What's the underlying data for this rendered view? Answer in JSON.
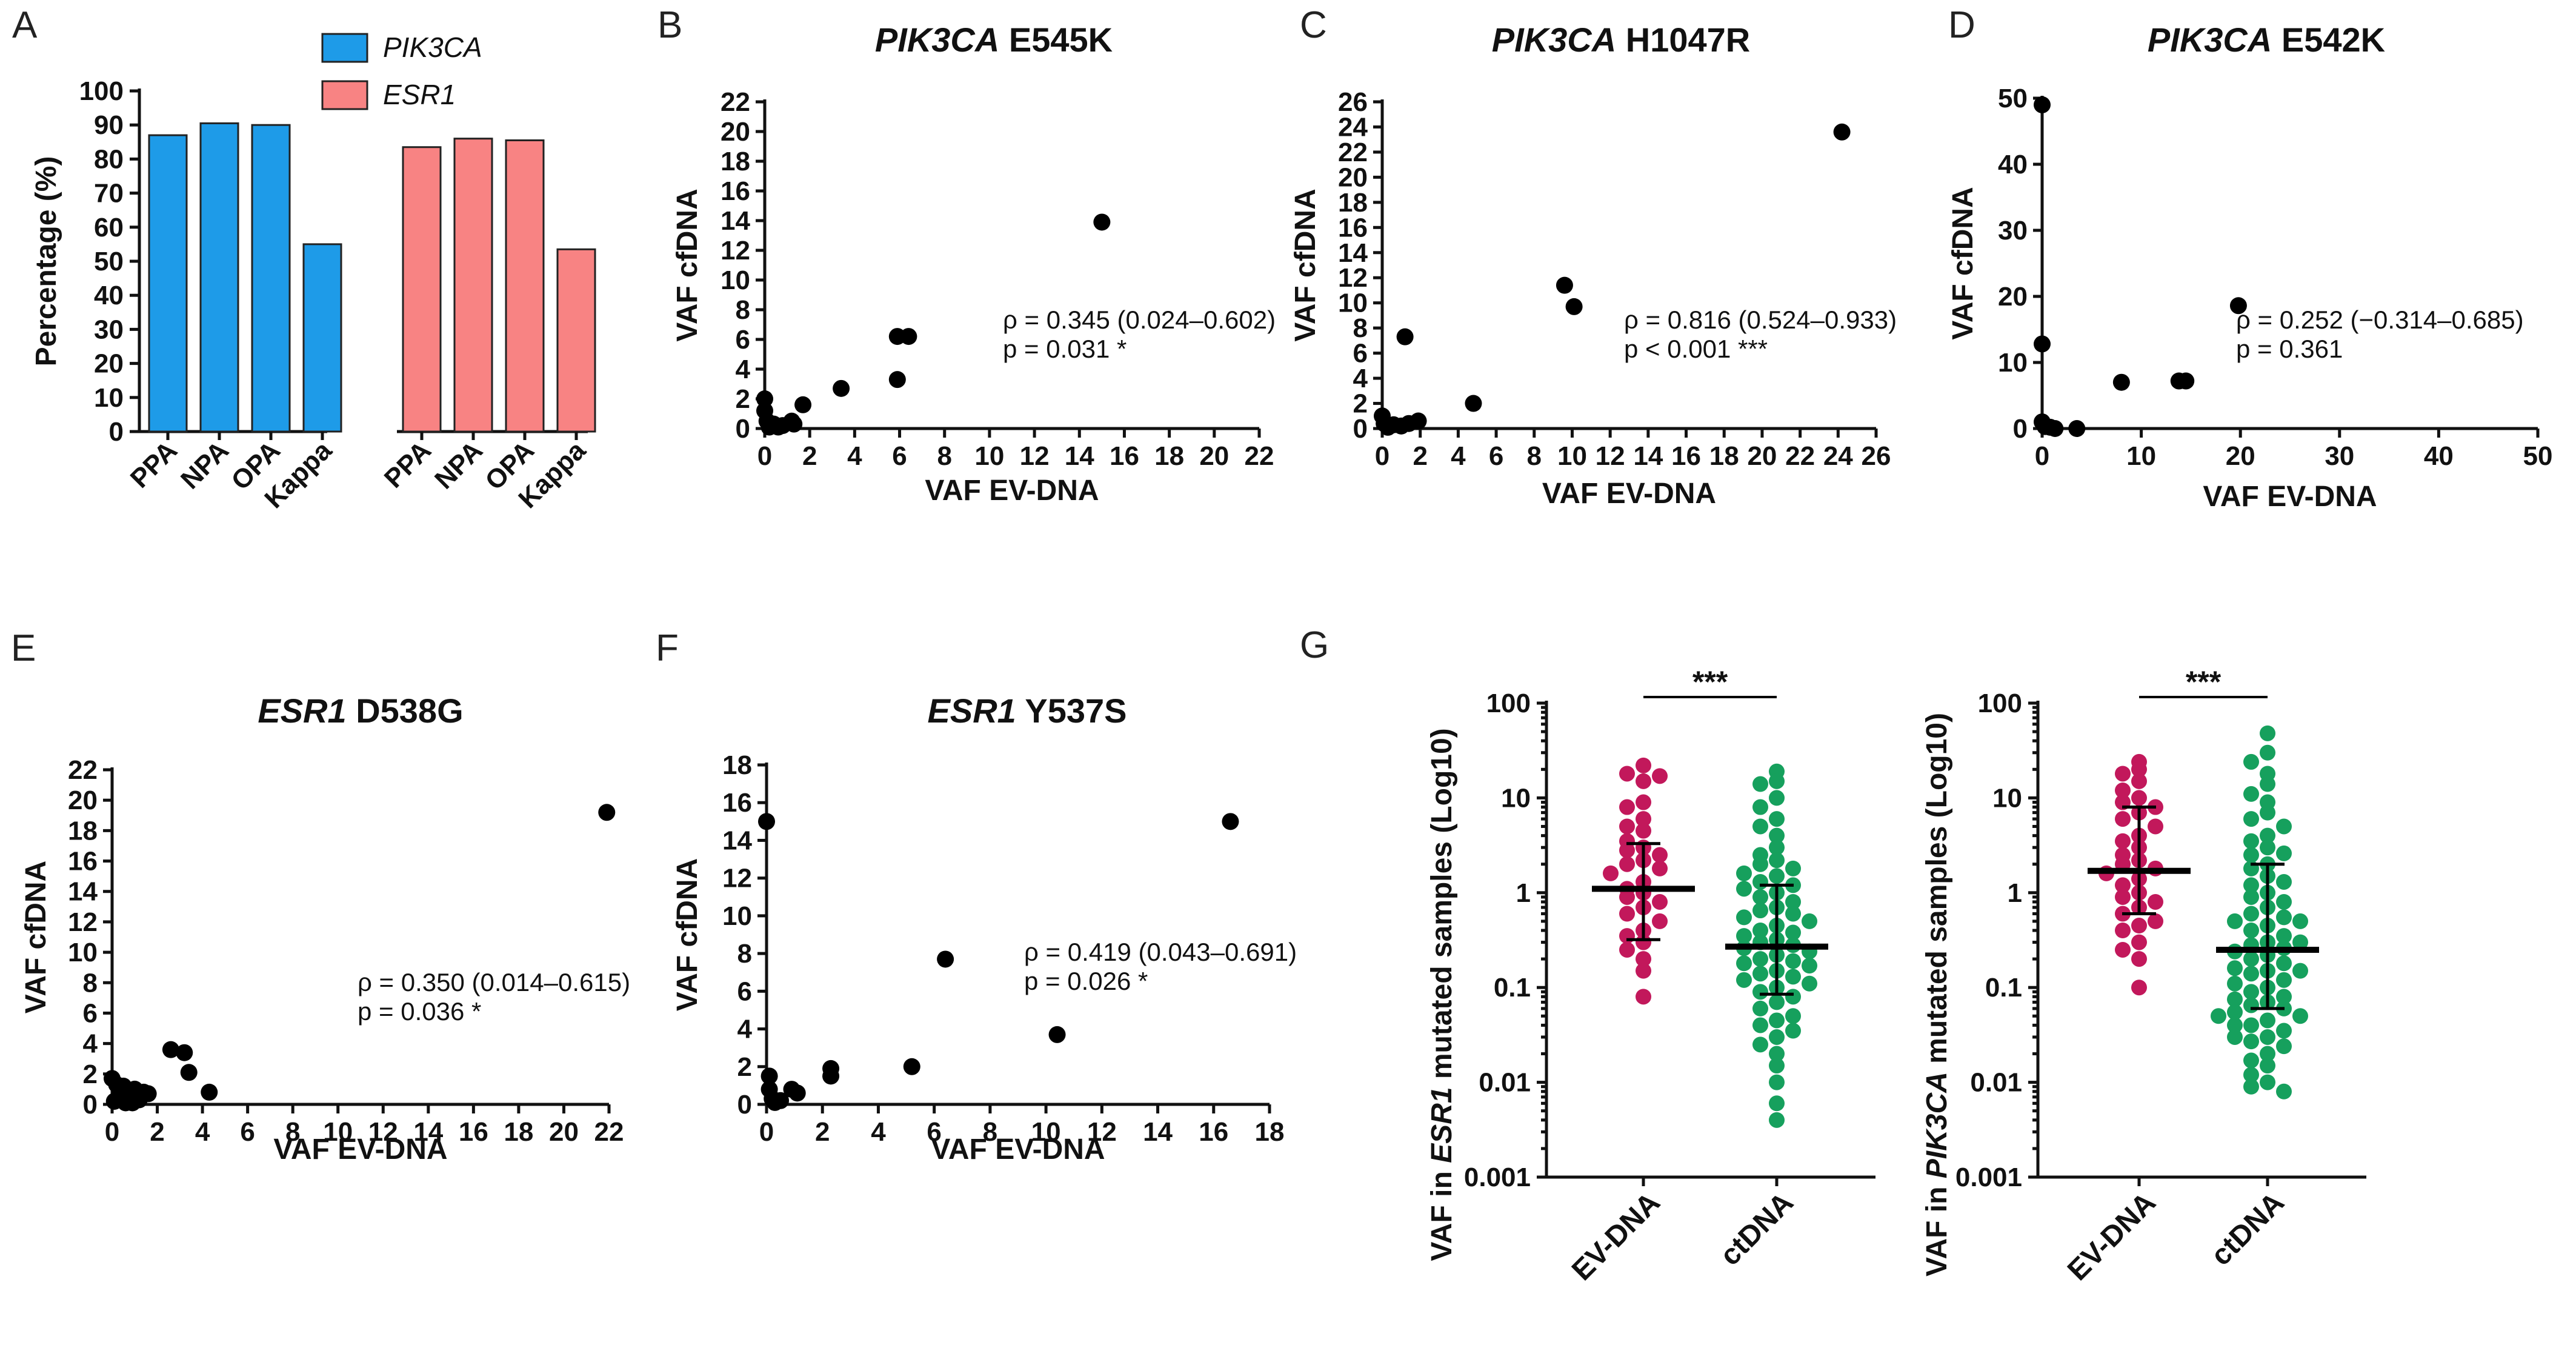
{
  "chart_data": [
    {
      "id": "A",
      "type": "bar",
      "panel_letter": "A",
      "ylabel": "Percentage (%)",
      "ylim": [
        0,
        100
      ],
      "yticks": [
        0,
        10,
        20,
        30,
        40,
        50,
        60,
        70,
        80,
        90,
        100
      ],
      "groups": [
        {
          "name": "PIK3CA",
          "color": "#1e9be8",
          "categories": [
            "PPA",
            "NPA",
            "OPA",
            "Kappa"
          ],
          "values": [
            87,
            90.5,
            90,
            55
          ]
        },
        {
          "name": "ESR1",
          "color": "#f88383",
          "categories": [
            "PPA",
            "NPA",
            "OPA",
            "Kappa"
          ],
          "values": [
            83.5,
            86,
            85.5,
            53.5
          ]
        }
      ],
      "legend": [
        {
          "label": "PIK3CA",
          "color": "#1e9be8"
        },
        {
          "label": "ESR1",
          "color": "#f88383"
        }
      ]
    },
    {
      "id": "B",
      "type": "scatter",
      "panel_letter": "B",
      "title_gene": "PIK3CA",
      "title_variant": "E545K",
      "xlabel": "VAF EV-DNA",
      "ylabel": "VAF cfDNA",
      "xlim": [
        0,
        22
      ],
      "ylim": [
        0,
        22
      ],
      "xticks": [
        0,
        2,
        4,
        6,
        8,
        10,
        12,
        14,
        16,
        18,
        20,
        22
      ],
      "yticks": [
        0,
        2,
        4,
        6,
        8,
        10,
        12,
        14,
        16,
        18,
        20,
        22
      ],
      "points": [
        [
          0,
          2
        ],
        [
          0,
          1.2
        ],
        [
          0.1,
          0.5
        ],
        [
          0.2,
          0.1
        ],
        [
          0.4,
          0.3
        ],
        [
          0.6,
          0.1
        ],
        [
          0.8,
          0.2
        ],
        [
          1.2,
          0.5
        ],
        [
          1.3,
          0.3
        ],
        [
          1.7,
          1.6
        ],
        [
          3.4,
          2.7
        ],
        [
          5.9,
          3.3
        ],
        [
          5.9,
          6.2
        ],
        [
          6.4,
          6.2
        ],
        [
          15,
          13.9
        ]
      ],
      "stat_rho": "ρ = 0.345 (0.024–0.602)",
      "stat_p": "p = 0.031 *"
    },
    {
      "id": "C",
      "type": "scatter",
      "panel_letter": "C",
      "title_gene": "PIK3CA",
      "title_variant": "H1047R",
      "xlabel": "VAF EV-DNA",
      "ylabel": "VAF cfDNA",
      "xlim": [
        0,
        26
      ],
      "ylim": [
        0,
        26
      ],
      "xticks": [
        0,
        2,
        4,
        6,
        8,
        10,
        12,
        14,
        16,
        18,
        20,
        22,
        24,
        26
      ],
      "yticks": [
        0,
        2,
        4,
        6,
        8,
        10,
        12,
        14,
        16,
        18,
        20,
        22,
        24,
        26
      ],
      "points": [
        [
          0,
          1
        ],
        [
          0.1,
          0.4
        ],
        [
          0.3,
          0.1
        ],
        [
          0.6,
          0.3
        ],
        [
          1,
          0.2
        ],
        [
          1.2,
          7.3
        ],
        [
          1.4,
          0.4
        ],
        [
          1.9,
          0.6
        ],
        [
          4.8,
          2
        ],
        [
          9.6,
          11.4
        ],
        [
          10.1,
          9.7
        ],
        [
          24.2,
          23.6
        ]
      ],
      "stat_rho": "ρ = 0.816 (0.524–0.933)",
      "stat_p": "p < 0.001 ***"
    },
    {
      "id": "D",
      "type": "scatter",
      "panel_letter": "D",
      "title_gene": "PIK3CA",
      "title_variant": "E542K",
      "xlabel": "VAF EV-DNA",
      "ylabel": "VAF cfDNA",
      "xlim": [
        0,
        50
      ],
      "ylim": [
        0,
        50
      ],
      "xticks": [
        0,
        10,
        20,
        30,
        40,
        50
      ],
      "yticks": [
        0,
        10,
        20,
        30,
        40,
        50
      ],
      "points": [
        [
          0,
          49
        ],
        [
          0,
          12.8
        ],
        [
          0,
          1
        ],
        [
          0.3,
          0.3
        ],
        [
          0.8,
          0.2
        ],
        [
          1.3,
          0
        ],
        [
          3.5,
          0
        ],
        [
          8,
          7
        ],
        [
          13.8,
          7.2
        ],
        [
          14.5,
          7.2
        ],
        [
          19.8,
          18.6
        ]
      ],
      "stat_rho": "ρ = 0.252 (−0.314–0.685)",
      "stat_p": "p = 0.361"
    },
    {
      "id": "E",
      "type": "scatter",
      "panel_letter": "E",
      "title_gene": "ESR1",
      "title_variant": "D538G",
      "xlabel": "VAF EV-DNA",
      "ylabel": "VAF cfDNA",
      "xlim": [
        0,
        22
      ],
      "ylim": [
        0,
        22
      ],
      "xticks": [
        0,
        2,
        4,
        6,
        8,
        10,
        12,
        14,
        16,
        18,
        20,
        22
      ],
      "yticks": [
        0,
        2,
        4,
        6,
        8,
        10,
        12,
        14,
        16,
        18,
        20,
        22
      ],
      "points": [
        [
          0,
          1.7
        ],
        [
          0.2,
          1.3
        ],
        [
          0.3,
          0.5
        ],
        [
          0.5,
          1.2
        ],
        [
          0.6,
          0.1
        ],
        [
          0.8,
          0.6
        ],
        [
          1,
          1
        ],
        [
          1.2,
          0.3
        ],
        [
          1.4,
          0.8
        ],
        [
          1.6,
          0.7
        ],
        [
          2.6,
          3.6
        ],
        [
          3.2,
          3.4
        ],
        [
          3.4,
          2.1
        ],
        [
          4.3,
          0.8
        ],
        [
          21.9,
          19.2
        ],
        [
          0.1,
          0.2
        ],
        [
          0.9,
          0.1
        ]
      ],
      "stat_rho": "ρ = 0.350 (0.014–0.615)",
      "stat_p": "p = 0.036 *"
    },
    {
      "id": "F",
      "type": "scatter",
      "panel_letter": "F",
      "title_gene": "ESR1",
      "title_variant": "Y537S",
      "xlabel": "VAF EV-DNA",
      "ylabel": "VAF cfDNA",
      "xlim": [
        0,
        18
      ],
      "ylim": [
        0,
        18
      ],
      "xticks": [
        0,
        2,
        4,
        6,
        8,
        10,
        12,
        14,
        16,
        18
      ],
      "yticks": [
        0,
        2,
        4,
        6,
        8,
        10,
        12,
        14,
        16,
        18
      ],
      "points": [
        [
          0,
          15
        ],
        [
          0.1,
          1.5
        ],
        [
          0.1,
          0.8
        ],
        [
          0.2,
          0.3
        ],
        [
          0.3,
          0.1
        ],
        [
          0.5,
          0.2
        ],
        [
          0.9,
          0.8
        ],
        [
          1.1,
          0.6
        ],
        [
          2.3,
          1.9
        ],
        [
          2.3,
          1.5
        ],
        [
          5.2,
          2
        ],
        [
          6.4,
          7.7
        ],
        [
          10.4,
          3.7
        ],
        [
          16.6,
          15
        ]
      ],
      "stat_rho": "ρ = 0.419 (0.043–0.691)",
      "stat_p": "p = 0.026 *"
    },
    {
      "id": "G1",
      "type": "scatter",
      "panel_letter": "G",
      "ylabel_pre": "VAF in ",
      "ylabel_gene": "ESR1",
      "ylabel_post": " mutated samples (Log10)",
      "yscale": "log",
      "ylim": [
        0.001,
        100
      ],
      "yticks": [
        "0.001",
        "0.01",
        "0.1",
        "1",
        "10",
        "100"
      ],
      "categories": [
        "EV-DNA",
        "ctDNA"
      ],
      "colors": [
        "#c2185b",
        "#16a05d"
      ],
      "medians": [
        1.1,
        0.27
      ],
      "iqr": [
        [
          0.32,
          3.3
        ],
        [
          0.085,
          1.2
        ]
      ],
      "significance": "***",
      "ev_values": [
        22,
        18,
        17,
        15,
        9,
        8,
        6,
        5,
        4.5,
        3.5,
        3,
        2.8,
        2.5,
        2.2,
        2,
        1.8,
        1.6,
        1.3,
        1.1,
        1,
        0.9,
        0.8,
        0.7,
        0.6,
        0.5,
        0.4,
        0.35,
        0.3,
        0.25,
        0.2,
        0.15,
        0.08
      ],
      "ct_values": [
        19,
        15,
        14,
        10,
        8,
        6,
        5,
        4,
        3,
        2.5,
        2.2,
        2,
        1.8,
        1.6,
        1.5,
        1.3,
        1.2,
        1.1,
        1,
        0.9,
        0.8,
        0.7,
        0.65,
        0.6,
        0.55,
        0.5,
        0.45,
        0.4,
        0.38,
        0.35,
        0.32,
        0.3,
        0.28,
        0.26,
        0.24,
        0.22,
        0.2,
        0.19,
        0.18,
        0.17,
        0.15,
        0.14,
        0.13,
        0.12,
        0.11,
        0.1,
        0.09,
        0.08,
        0.07,
        0.06,
        0.05,
        0.045,
        0.04,
        0.035,
        0.03,
        0.025,
        0.02,
        0.015,
        0.01,
        0.006,
        0.004
      ]
    },
    {
      "id": "G2",
      "type": "scatter",
      "panel_letter": "",
      "ylabel_pre": "VAF in ",
      "ylabel_gene": "PIK3CA",
      "ylabel_post": " mutated samples (Log10)",
      "yscale": "log",
      "ylim": [
        0.001,
        100
      ],
      "yticks": [
        "0.001",
        "0.01",
        "0.1",
        "1",
        "10",
        "100"
      ],
      "categories": [
        "EV-DNA",
        "ctDNA"
      ],
      "colors": [
        "#c2185b",
        "#16a05d"
      ],
      "medians": [
        1.7,
        0.25
      ],
      "iqr": [
        [
          0.6,
          8
        ],
        [
          0.06,
          2
        ]
      ],
      "significance": "***",
      "ev_values": [
        24,
        20,
        18,
        15,
        12,
        10,
        9,
        8,
        7,
        6,
        5,
        4,
        3.5,
        3,
        2.5,
        2.2,
        2,
        1.8,
        1.6,
        1.4,
        1.2,
        1,
        0.9,
        0.8,
        0.7,
        0.6,
        0.5,
        0.45,
        0.4,
        0.3,
        0.25,
        0.2,
        0.1
      ],
      "ct_values": [
        48,
        30,
        24,
        18,
        14,
        11,
        9,
        7,
        6,
        5,
        4,
        3.5,
        3,
        2.5,
        2,
        1.8,
        1.5,
        1.2,
        1,
        0.9,
        0.8,
        0.7,
        0.6,
        0.55,
        0.5,
        0.45,
        0.4,
        0.35,
        0.3,
        0.28,
        0.26,
        0.24,
        0.22,
        0.2,
        0.18,
        0.16,
        0.15,
        0.14,
        0.12,
        0.11,
        0.1,
        0.09,
        0.08,
        0.075,
        0.07,
        0.065,
        0.06,
        0.055,
        0.05,
        0.045,
        0.04,
        0.035,
        0.03,
        0.027,
        0.024,
        0.02,
        0.017,
        0.015,
        0.012,
        0.01,
        0.009,
        0.008,
        0.03,
        0.04,
        0.05,
        0.15,
        0.3,
        0.5,
        1.3,
        2.6
      ]
    }
  ]
}
